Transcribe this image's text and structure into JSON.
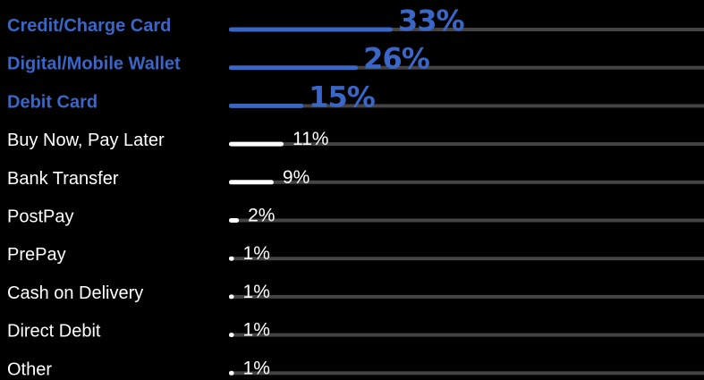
{
  "chart_data": {
    "type": "bar",
    "orientation": "horizontal",
    "categories": [
      "Credit/Charge Card",
      "Digital/Mobile Wallet",
      "Debit Card",
      "Buy Now, Pay Later",
      "Bank Transfer",
      "PostPay",
      "PrePay",
      "Cash on Delivery",
      "Direct Debit",
      "Other"
    ],
    "values": [
      33,
      26,
      15,
      11,
      9,
      2,
      1,
      1,
      1,
      1
    ],
    "value_labels": [
      "33%",
      "26%",
      "15%",
      "11%",
      "9%",
      "2%",
      "1%",
      "1%",
      "1%",
      "1%"
    ],
    "highlighted": [
      true,
      true,
      true,
      false,
      false,
      false,
      false,
      false,
      false,
      false
    ],
    "xlim": [
      0,
      100
    ],
    "title": "",
    "xlabel": "",
    "ylabel": "",
    "legend": "none",
    "grid": false,
    "colors": {
      "highlight": "#3a66c8",
      "normal_bar": "#ffffff",
      "normal_text": "#ffffff",
      "track": "#444444",
      "background": "#000000"
    }
  }
}
